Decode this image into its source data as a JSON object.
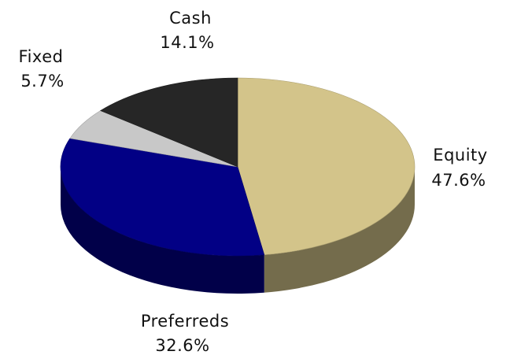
{
  "chart_data": {
    "type": "pie",
    "style": "3d",
    "title": "",
    "legend": "none",
    "slices": [
      {
        "label": "Equity",
        "value": 47.6,
        "value_text": "47.6%",
        "color": "#d3c48a"
      },
      {
        "label": "Preferreds",
        "value": 32.6,
        "value_text": "32.6%",
        "color": "#020085"
      },
      {
        "label": "Fixed",
        "value": 5.7,
        "value_text": "5.7%",
        "color": "#c8c8c8"
      },
      {
        "label": "Cash",
        "value": 14.1,
        "value_text": "14.1%",
        "color": "#262626"
      }
    ]
  }
}
